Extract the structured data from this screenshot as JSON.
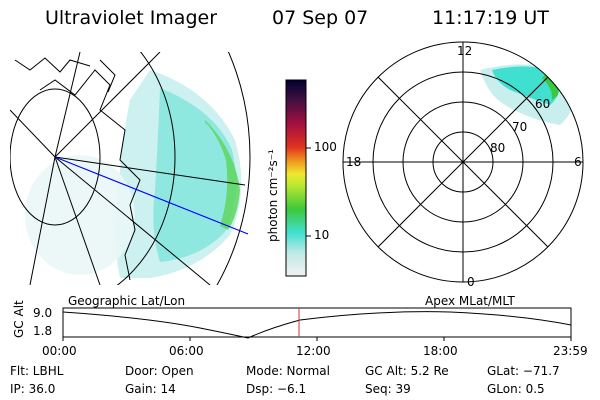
{
  "header": {
    "instrument": "Ultraviolet Imager",
    "date": "07 Sep 07",
    "time": "11:17:19 UT"
  },
  "geo_panel": {
    "label": "Geographic Lat/Lon"
  },
  "colorbar": {
    "label": "photon cm⁻²s⁻¹",
    "ticks": [
      "100",
      "10"
    ]
  },
  "polar_panel": {
    "label": "Apex MLat/MLT",
    "mlt_labels": {
      "top": "12",
      "left": "18",
      "right": "6",
      "bottom": "0"
    },
    "mlat_labels": [
      "60",
      "70",
      "80"
    ]
  },
  "timeline": {
    "ylabel": "GC Alt",
    "y_ticks": [
      "9.0",
      "1.8"
    ],
    "x_ticks": [
      "00:00",
      "06:00",
      "12:00",
      "18:00",
      "23:59"
    ]
  },
  "info": {
    "filter": "Flt: LBHL",
    "door": "Door: Open",
    "mode": "Mode: Normal",
    "gc_alt": "GC Alt: 5.2 Re",
    "glat": "GLat: −71.7",
    "ip": "IP: 36.0",
    "gain": "Gain: 14",
    "dsp": "Dsp:   −6.1",
    "seq": "Seq: 39",
    "glon": "GLon:   0.5"
  },
  "colors": {
    "aurora_cyan": "#40e0d0",
    "aurora_green": "#3ccc3c",
    "orbit_line": "#0000ff",
    "marker_line": "#cc3333"
  }
}
